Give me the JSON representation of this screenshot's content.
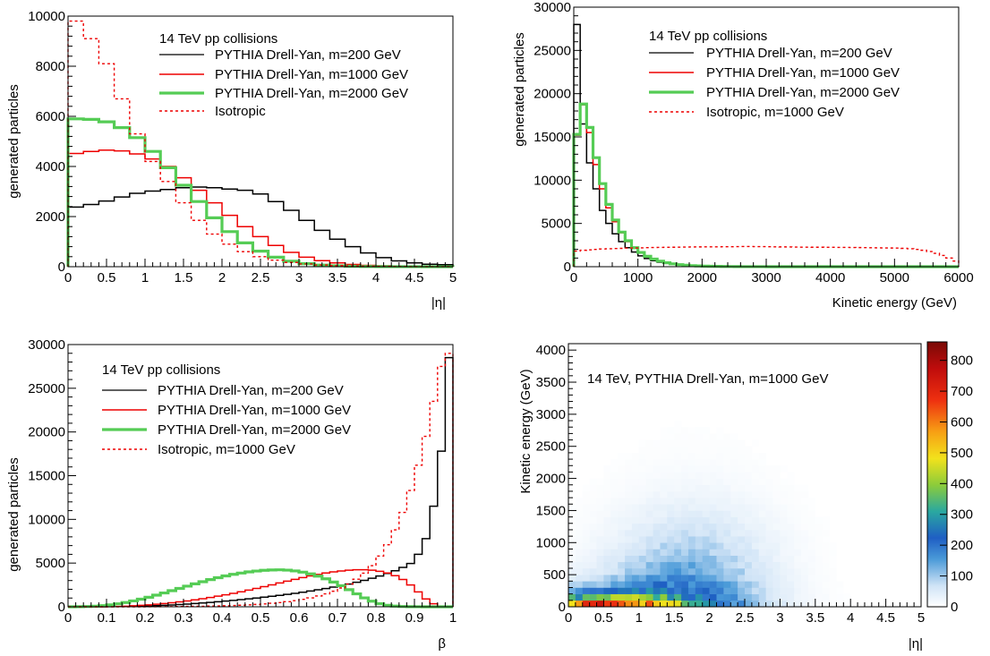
{
  "chart_data": [
    {
      "type": "line",
      "title": "",
      "xlabel": "|η|",
      "ylabel": "generated particles",
      "xlim": [
        0,
        5
      ],
      "ylim": [
        0,
        10000
      ],
      "xticks": [
        "0",
        "0.5",
        "1",
        "1.5",
        "2",
        "2.5",
        "3",
        "3.5",
        "4",
        "4.5",
        "5"
      ],
      "yticks": [
        "0",
        "2000",
        "4000",
        "6000",
        "8000",
        "10000"
      ],
      "legend_title": "14 TeV pp collisions",
      "legend_position": "top-right",
      "x": [
        0.1,
        0.3,
        0.5,
        0.7,
        0.9,
        1.1,
        1.3,
        1.5,
        1.7,
        1.9,
        2.1,
        2.3,
        2.5,
        2.7,
        2.9,
        3.1,
        3.3,
        3.5,
        3.7,
        3.9,
        4.1,
        4.3,
        4.5,
        4.7,
        4.9
      ],
      "series": [
        {
          "name": "PYTHIA Drell-Yan, m=200 GeV",
          "color": "#000000",
          "style": "solid",
          "values": [
            2380,
            2480,
            2620,
            2780,
            2930,
            3020,
            3080,
            3150,
            3180,
            3150,
            3100,
            3050,
            2900,
            2600,
            2250,
            1850,
            1450,
            1100,
            800,
            550,
            360,
            230,
            150,
            100,
            80
          ]
        },
        {
          "name": "PYTHIA Drell-Yan, m=1000 GeV",
          "color": "#ee0000",
          "style": "solid",
          "values": [
            4520,
            4600,
            4650,
            4620,
            4500,
            4300,
            4000,
            3550,
            3050,
            2550,
            2050,
            1600,
            1200,
            850,
            570,
            380,
            240,
            150,
            90,
            55,
            35,
            20,
            12,
            8,
            5
          ]
        },
        {
          "name": "PYTHIA Drell-Yan, m=2000 GeV",
          "color": "#55cc55",
          "style": "thick",
          "values": [
            5900,
            5880,
            5780,
            5550,
            5150,
            4600,
            3950,
            3250,
            2600,
            1950,
            1400,
            950,
            620,
            380,
            220,
            120,
            65,
            35,
            18,
            9,
            5,
            3,
            2,
            1,
            1
          ]
        },
        {
          "name": "Isotropic",
          "color": "#ee0000",
          "style": "dashed",
          "values": [
            9800,
            9100,
            8100,
            6700,
            5300,
            4200,
            3400,
            2550,
            1850,
            1300,
            900,
            600,
            400,
            260,
            170,
            110,
            70,
            45,
            28,
            18,
            11,
            7,
            4,
            3,
            2
          ]
        }
      ]
    },
    {
      "type": "line",
      "title": "",
      "xlabel": "Kinetic energy (GeV)",
      "ylabel": "generated particles",
      "xlim": [
        0,
        6000
      ],
      "ylim": [
        0,
        30000
      ],
      "xticks": [
        "0",
        "1000",
        "2000",
        "3000",
        "4000",
        "5000",
        "6000"
      ],
      "yticks": [
        "0",
        "5000",
        "10000",
        "15000",
        "20000",
        "25000",
        "30000"
      ],
      "legend_title": "14 TeV pp collisions",
      "legend_position": "top-right",
      "x": [
        50,
        150,
        250,
        350,
        450,
        550,
        650,
        750,
        850,
        950,
        1050,
        1150,
        1250,
        1350,
        1450,
        1550,
        1650,
        1750,
        1850,
        1950,
        2050,
        2150,
        2250,
        2350,
        2450,
        2550,
        2650,
        2750,
        2850,
        2950,
        3050,
        3150,
        3250,
        3350,
        3450,
        3550,
        3650,
        3750,
        3850,
        3950,
        4050,
        4150,
        4250,
        4350,
        4450,
        4550,
        4650,
        4750,
        4850,
        4950,
        5050,
        5150,
        5250,
        5350,
        5450,
        5550,
        5650,
        5750,
        5850,
        5950
      ],
      "series": [
        {
          "name": "PYTHIA Drell-Yan, m=200 GeV",
          "color": "#000000",
          "style": "solid",
          "values": [
            28000,
            16500,
            12000,
            9000,
            6500,
            5000,
            3800,
            2900,
            2200,
            1700,
            1250,
            950,
            700,
            520,
            380,
            280,
            200,
            150,
            110,
            80,
            60,
            45,
            33,
            25,
            18,
            14,
            10,
            7,
            5,
            4,
            3,
            2,
            1,
            1,
            1,
            1,
            1,
            0,
            0,
            0,
            0,
            0,
            0,
            0,
            0,
            0,
            0,
            0,
            0,
            0,
            0,
            0,
            0,
            0,
            0,
            0,
            0,
            0,
            0,
            0
          ]
        },
        {
          "name": "PYTHIA Drell-Yan, m=1000 GeV",
          "color": "#ee0000",
          "style": "solid",
          "values": [
            15200,
            18700,
            15500,
            11800,
            9000,
            6800,
            5200,
            3900,
            2900,
            2200,
            1600,
            1200,
            880,
            640,
            460,
            330,
            240,
            170,
            125,
            90,
            65,
            48,
            35,
            25,
            18,
            13,
            9,
            7,
            5,
            4,
            3,
            2,
            1,
            1,
            1,
            1,
            0,
            0,
            0,
            0,
            0,
            0,
            0,
            0,
            0,
            0,
            0,
            0,
            0,
            0,
            0,
            0,
            0,
            0,
            0,
            0,
            0,
            0,
            0,
            0
          ]
        },
        {
          "name": "PYTHIA Drell-Yan, m=2000 GeV",
          "color": "#55cc55",
          "style": "thick",
          "values": [
            15300,
            18800,
            16100,
            12600,
            9600,
            7200,
            5400,
            4000,
            3000,
            2200,
            1650,
            1200,
            880,
            640,
            460,
            330,
            240,
            175,
            125,
            90,
            65,
            48,
            35,
            25,
            18,
            13,
            9,
            7,
            5,
            4,
            3,
            2,
            1,
            1,
            1,
            1,
            0,
            0,
            0,
            0,
            0,
            0,
            0,
            0,
            0,
            0,
            0,
            0,
            0,
            0,
            0,
            0,
            0,
            0,
            0,
            0,
            0,
            0,
            0,
            0
          ]
        },
        {
          "name": "Isotropic, m=1000 GeV",
          "color": "#ee0000",
          "style": "dashed",
          "values": [
            1800,
            1900,
            1950,
            2000,
            2050,
            2080,
            2100,
            2120,
            2150,
            2170,
            2180,
            2200,
            2220,
            2230,
            2240,
            2250,
            2260,
            2270,
            2280,
            2290,
            2300,
            2300,
            2300,
            2310,
            2310,
            2320,
            2330,
            2330,
            2320,
            2320,
            2310,
            2300,
            2290,
            2280,
            2270,
            2260,
            2260,
            2250,
            2250,
            2240,
            2240,
            2230,
            2230,
            2220,
            2210,
            2200,
            2190,
            2180,
            2170,
            2160,
            2150,
            2120,
            2080,
            2000,
            1900,
            1750,
            1550,
            1300,
            1000,
            650
          ]
        }
      ]
    },
    {
      "type": "line",
      "title": "",
      "xlabel": "β",
      "ylabel": "generated particles",
      "xlim": [
        0,
        1
      ],
      "ylim": [
        0,
        30000
      ],
      "xticks": [
        "0",
        "0.1",
        "0.2",
        "0.3",
        "0.4",
        "0.5",
        "0.6",
        "0.7",
        "0.8",
        "0.9",
        "1"
      ],
      "yticks": [
        "0",
        "5000",
        "10000",
        "15000",
        "20000",
        "25000",
        "30000"
      ],
      "legend_title": "14 TeV pp collisions",
      "legend_position": "top-left",
      "x": [
        0.01,
        0.03,
        0.05,
        0.07,
        0.09,
        0.11,
        0.13,
        0.15,
        0.17,
        0.19,
        0.21,
        0.23,
        0.25,
        0.27,
        0.29,
        0.31,
        0.33,
        0.35,
        0.37,
        0.39,
        0.41,
        0.43,
        0.45,
        0.47,
        0.49,
        0.51,
        0.53,
        0.55,
        0.57,
        0.59,
        0.61,
        0.63,
        0.65,
        0.67,
        0.69,
        0.71,
        0.73,
        0.75,
        0.77,
        0.79,
        0.81,
        0.83,
        0.85,
        0.87,
        0.89,
        0.91,
        0.93,
        0.95,
        0.97,
        0.99
      ],
      "series": [
        {
          "name": "PYTHIA Drell-Yan, m=200 GeV",
          "color": "#000000",
          "style": "solid",
          "values": [
            0,
            0,
            0,
            0,
            0,
            10,
            20,
            30,
            50,
            70,
            100,
            130,
            170,
            210,
            260,
            310,
            370,
            430,
            500,
            570,
            650,
            730,
            820,
            910,
            1000,
            1100,
            1200,
            1310,
            1420,
            1540,
            1670,
            1800,
            1940,
            2090,
            2250,
            2420,
            2600,
            2800,
            3020,
            3260,
            3520,
            3810,
            4120,
            4500,
            4950,
            6000,
            7800,
            11500,
            17800,
            28500
          ]
        },
        {
          "name": "PYTHIA Drell-Yan, m=1000 GeV",
          "color": "#ee0000",
          "style": "solid",
          "values": [
            0,
            0,
            0,
            0,
            10,
            20,
            40,
            70,
            110,
            160,
            220,
            290,
            370,
            460,
            560,
            670,
            790,
            920,
            1060,
            1210,
            1370,
            1540,
            1720,
            1910,
            2100,
            2300,
            2510,
            2720,
            2930,
            3140,
            3340,
            3530,
            3700,
            3860,
            3990,
            4100,
            4180,
            4230,
            4230,
            4180,
            4060,
            3860,
            3560,
            3120,
            2500,
            1700,
            900,
            350,
            80,
            10
          ]
        },
        {
          "name": "PYTHIA Drell-Yan, m=2000 GeV",
          "color": "#55cc55",
          "style": "thick",
          "values": [
            0,
            10,
            30,
            70,
            130,
            220,
            340,
            490,
            670,
            870,
            1090,
            1330,
            1580,
            1840,
            2100,
            2360,
            2620,
            2870,
            3110,
            3330,
            3530,
            3710,
            3860,
            3990,
            4090,
            4170,
            4210,
            4230,
            4190,
            4100,
            3960,
            3760,
            3510,
            3200,
            2830,
            2410,
            1960,
            1480,
            1020,
            640,
            350,
            170,
            80,
            30,
            10,
            5,
            0,
            0,
            0,
            0
          ]
        },
        {
          "name": "Isotropic, m=1000 GeV",
          "color": "#ee0000",
          "style": "dashed",
          "values": [
            0,
            0,
            0,
            0,
            0,
            0,
            0,
            0,
            0,
            0,
            10,
            10,
            20,
            20,
            30,
            40,
            50,
            60,
            80,
            100,
            120,
            150,
            180,
            220,
            270,
            330,
            400,
            480,
            580,
            700,
            850,
            1020,
            1230,
            1480,
            1780,
            2150,
            2600,
            3150,
            3850,
            4700,
            5800,
            7100,
            8800,
            10800,
            13300,
            16200,
            19500,
            23500,
            27500,
            29000
          ]
        }
      ]
    },
    {
      "type": "heatmap",
      "title": "",
      "annotation": "14 TeV, PYTHIA Drell-Yan, m=1000 GeV",
      "xlabel": "|η|",
      "ylabel": "Kinetic energy (GeV)",
      "xlim": [
        0,
        5
      ],
      "ylim": [
        0,
        4100
      ],
      "xticks": [
        "0",
        "0.5",
        "1",
        "1.5",
        "2",
        "2.5",
        "3",
        "3.5",
        "4",
        "4.5",
        "5"
      ],
      "yticks": [
        "0",
        "500",
        "1000",
        "1500",
        "2000",
        "2500",
        "3000",
        "3500",
        "4000"
      ],
      "zlim": [
        0,
        860
      ],
      "zticks": [
        "0",
        "100",
        "200",
        "300",
        "400",
        "500",
        "600",
        "700",
        "800"
      ],
      "x_bins": 50,
      "y_bins": 41
    }
  ]
}
